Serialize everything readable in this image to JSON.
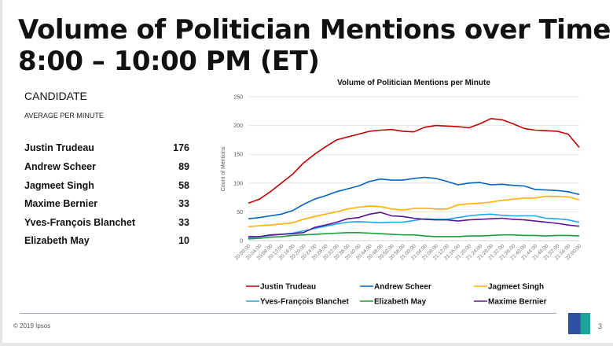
{
  "slide": {
    "title_line1": "Volume of Politician Mentions over Time",
    "title_line2": "8:00 – 10:00 PM (ET)",
    "table_header": "CANDIDATE",
    "table_subheader": "AVERAGE PER MINUTE",
    "rows": [
      {
        "name": "Justin Trudeau",
        "value": "176"
      },
      {
        "name": "Andrew Scheer",
        "value": "89"
      },
      {
        "name": "Jagmeet Singh",
        "value": "58"
      },
      {
        "name": "Maxime Bernier",
        "value": "33"
      },
      {
        "name": "Yves-François Blanchet",
        "value": "33"
      },
      {
        "name": "Elizabeth May",
        "value": "10"
      }
    ],
    "copyright": "© 2019 Ipsos",
    "logo_text": "Ipsos",
    "page_number": "3"
  },
  "chart_data": {
    "type": "line",
    "title": "Volume of Politician Mentions per Minute",
    "xlabel": "",
    "ylabel": "Count of Mentions",
    "ylim": [
      0,
      250
    ],
    "yticks": [
      0,
      50,
      100,
      150,
      200,
      250
    ],
    "grid": true,
    "legend_position": "bottom",
    "x": [
      "20:00:00",
      "20:04:00",
      "20:08:00",
      "20:12:00",
      "20:16:00",
      "20:20:00",
      "20:24:00",
      "20:28:00",
      "20:32:00",
      "20:36:00",
      "20:40:00",
      "20:44:00",
      "20:48:00",
      "20:52:00",
      "20:56:00",
      "21:00:00",
      "21:04:00",
      "21:08:00",
      "21:12:00",
      "21:16:00",
      "21:20:00",
      "21:24:00",
      "21:28:00",
      "21:32:00",
      "21:36:00",
      "21:40:00",
      "21:44:00",
      "21:48:00",
      "21:52:00",
      "21:56:00",
      "22:00:00"
    ],
    "series": [
      {
        "name": "Justin Trudeau",
        "color": "#c00000",
        "values": [
          65,
          72,
          85,
          100,
          115,
          135,
          150,
          163,
          175,
          180,
          185,
          190,
          192,
          193,
          190,
          189,
          197,
          200,
          199,
          198,
          196,
          203,
          212,
          210,
          203,
          195,
          192,
          191,
          190,
          185,
          162
        ]
      },
      {
        "name": "Andrew Scheer",
        "color": "#0563c1",
        "values": [
          38,
          40,
          43,
          46,
          52,
          63,
          72,
          78,
          85,
          90,
          95,
          103,
          107,
          105,
          105,
          108,
          110,
          108,
          103,
          97,
          100,
          101,
          97,
          98,
          96,
          95,
          89,
          88,
          87,
          85,
          80
        ]
      },
      {
        "name": "Jagmeet Singh",
        "color": "#ffb000",
        "values": [
          24,
          26,
          27,
          29,
          31,
          37,
          42,
          46,
          50,
          55,
          58,
          60,
          59,
          55,
          53,
          56,
          56,
          55,
          55,
          62,
          64,
          65,
          67,
          70,
          72,
          74,
          74,
          77,
          77,
          76,
          71
        ]
      },
      {
        "name": "Yves-François Blanchet",
        "color": "#1ea7f0",
        "values": [
          5,
          7,
          9,
          11,
          13,
          17,
          21,
          25,
          29,
          32,
          33,
          32,
          31,
          32,
          32,
          35,
          38,
          37,
          37,
          40,
          43,
          45,
          46,
          44,
          43,
          43,
          43,
          39,
          38,
          36,
          32
        ]
      },
      {
        "name": "Elizabeth May",
        "color": "#1a9e3a",
        "values": [
          3,
          4,
          6,
          7,
          9,
          10,
          11,
          12,
          13,
          14,
          14,
          13,
          12,
          11,
          10,
          10,
          8,
          7,
          7,
          7,
          8,
          8,
          9,
          10,
          10,
          9,
          9,
          8,
          9,
          9,
          8
        ]
      },
      {
        "name": "Maxime Bernier",
        "color": "#5b1596",
        "values": [
          7,
          7,
          10,
          11,
          12,
          14,
          23,
          27,
          32,
          38,
          40,
          46,
          49,
          43,
          42,
          39,
          37,
          36,
          36,
          34,
          36,
          37,
          38,
          39,
          37,
          36,
          34,
          32,
          30,
          27,
          25
        ]
      }
    ]
  }
}
